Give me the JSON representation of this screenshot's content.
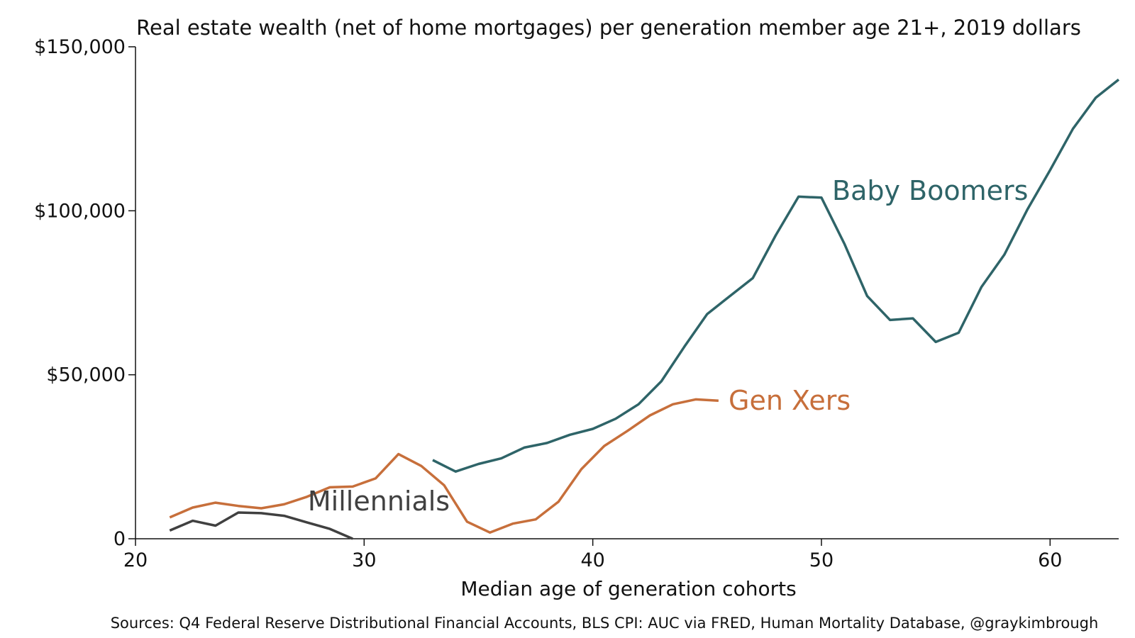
{
  "chart_data": {
    "type": "line",
    "title": "Real estate wealth (net of home mortgages) per generation member age 21+, 2019 dollars",
    "xlabel": "Median age of generation cohorts",
    "ylabel": "",
    "xlim": [
      20,
      63
    ],
    "ylim": [
      0,
      150000
    ],
    "xticks": [
      20,
      30,
      40,
      50,
      60
    ],
    "xtick_labels": [
      "20",
      "30",
      "40",
      "50",
      "60"
    ],
    "yticks": [
      0,
      50000,
      100000,
      150000
    ],
    "ytick_labels": [
      "0",
      "$50,000",
      "$100,000",
      "$150,000"
    ],
    "grid": false,
    "legend": "none (series labels placed inline next to lines)",
    "source": "Sources: Q4 Federal Reserve Distributional Financial Accounts, BLS CPI: AUC via FRED, Human Mortality Database, @graykimbrough",
    "series": [
      {
        "name": "Millennials",
        "color": "#404040",
        "x": [
          21.5,
          22.5,
          23.5,
          24.5,
          25.5,
          26.5,
          27.5,
          28.5,
          29.5
        ],
        "y": [
          2500,
          5500,
          4000,
          8000,
          7800,
          7000,
          5000,
          3000,
          0
        ]
      },
      {
        "name": "Gen Xers",
        "color": "#c76f3b",
        "x": [
          21.5,
          22.5,
          23.5,
          24.5,
          25.5,
          26.5,
          27.5,
          28.5,
          29.5,
          30.5,
          31.5,
          32.5,
          33.5,
          34.5,
          35.5,
          36.5,
          37.5,
          38.5,
          39.5,
          40.5,
          41.5,
          42.5,
          43.5,
          44.5,
          45.5
        ],
        "y": [
          6500,
          9500,
          11000,
          10000,
          9300,
          10500,
          12800,
          15700,
          15900,
          18400,
          25800,
          22200,
          16300,
          5200,
          1900,
          4600,
          5900,
          11300,
          21200,
          28300,
          32800,
          37600,
          41000,
          42500,
          42100
        ]
      },
      {
        "name": "Baby Boomers",
        "color": "#2e6468",
        "x": [
          33,
          34,
          35,
          36,
          37,
          38,
          39,
          40,
          41,
          42,
          43,
          44,
          45,
          46,
          47,
          48,
          49,
          50,
          51,
          52,
          53,
          54,
          55,
          56,
          57,
          58,
          59,
          60,
          61,
          62,
          63
        ],
        "y": [
          24000,
          20500,
          22800,
          24500,
          27800,
          29200,
          31700,
          33500,
          36600,
          41000,
          48000,
          58500,
          68500,
          74000,
          79500,
          92500,
          104300,
          104000,
          90000,
          74000,
          66700,
          67200,
          60000,
          62800,
          76800,
          86600,
          100300,
          112400,
          125000,
          134500,
          140000
        ]
      }
    ]
  }
}
